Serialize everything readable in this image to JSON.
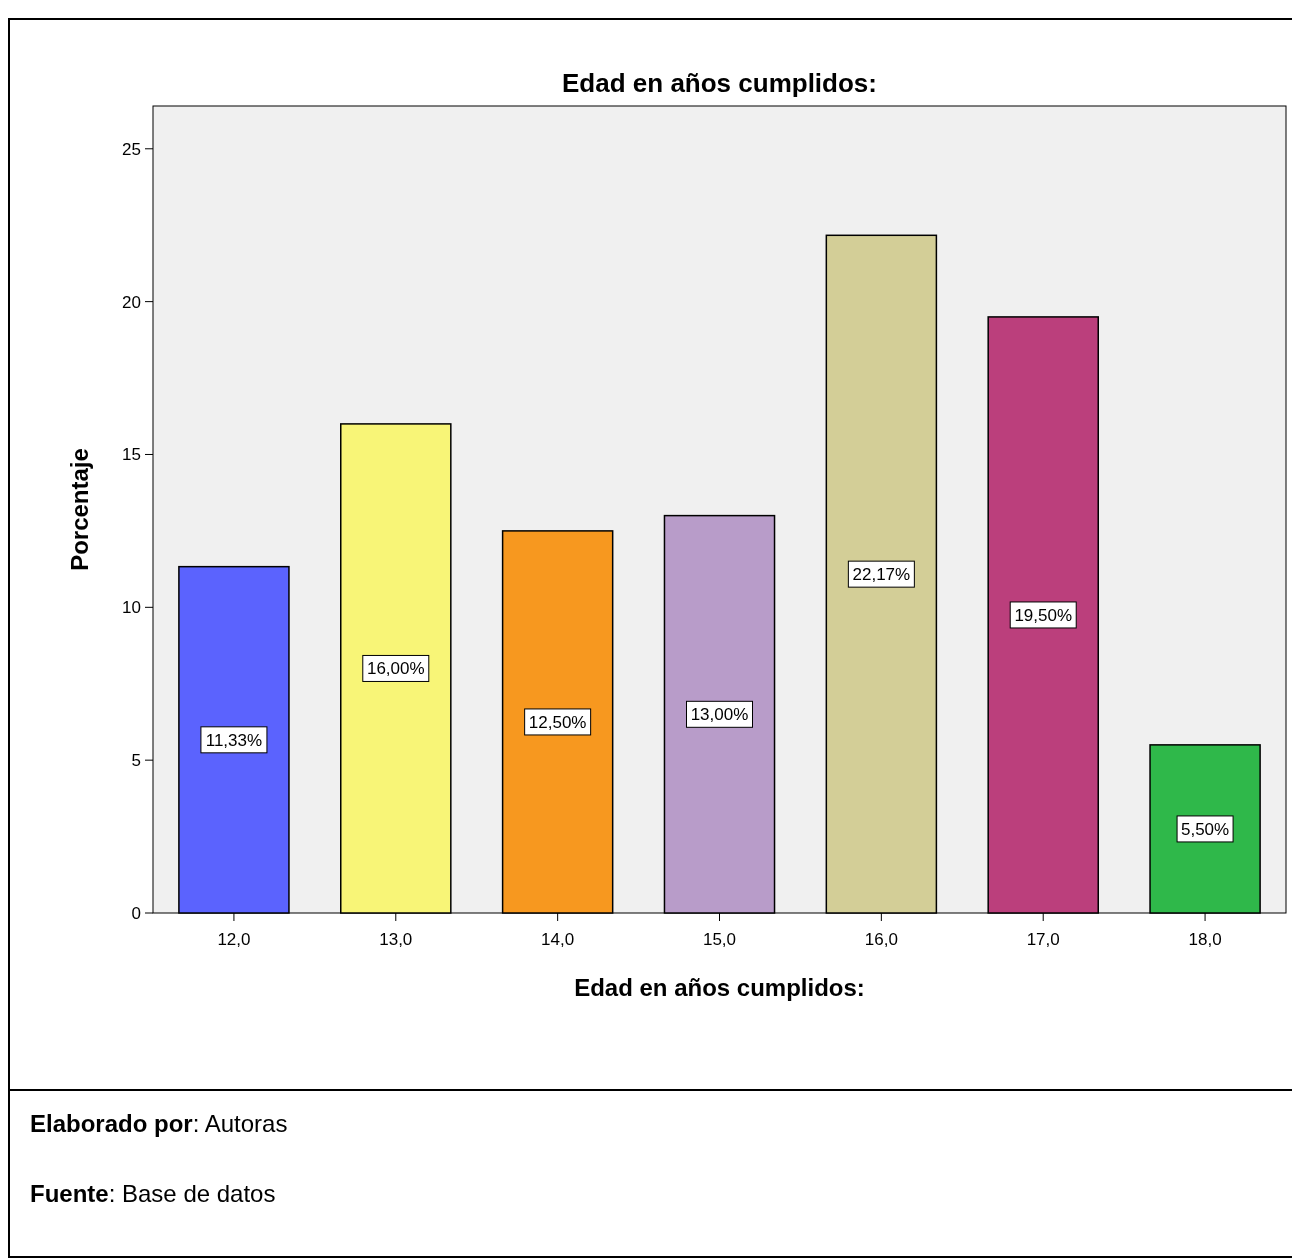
{
  "chart_data": {
    "type": "bar",
    "title": "Edad en años cumplidos:",
    "xlabel": "Edad en años cumplidos:",
    "ylabel": "Porcentaje",
    "categories": [
      "12,0",
      "13,0",
      "14,0",
      "15,0",
      "16,0",
      "17,0",
      "18,0"
    ],
    "values": [
      11.33,
      16.0,
      12.5,
      13.0,
      22.17,
      19.5,
      5.5
    ],
    "colors": [
      "#5b63fe",
      "#f8f577",
      "#f7981f",
      "#b89cc9",
      "#d3ce97",
      "#bb3f7c",
      "#2fb84a"
    ],
    "value_labels": [
      "11,33%",
      "16,00%",
      "12,50%",
      "13,00%",
      "22,17%",
      "19,50%",
      "5,50%"
    ],
    "ylim": [
      0,
      26.4
    ],
    "yticks": [
      0,
      5,
      10,
      15,
      20,
      25
    ],
    "grid": false,
    "annotations": [
      "Elaborado por: Autoras",
      "Fuente: Base de datos"
    ]
  }
}
